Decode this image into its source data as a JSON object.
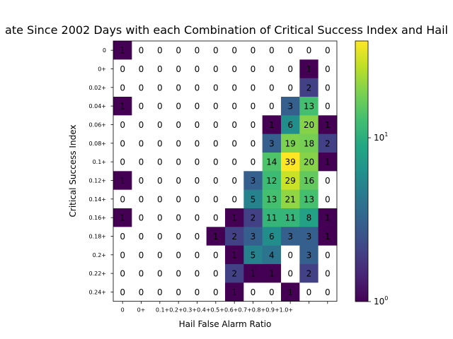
{
  "chart_data": {
    "type": "heatmap",
    "title": "ate Since 2002 Days with each Combination of Critical Success Index and Hail",
    "xlabel": "Hail False Alarm Ratio",
    "ylabel": "Critical Success Index",
    "x_tick_labels": [
      "0",
      "0+",
      "0.1+",
      "0.2+",
      "0.3+",
      "0.4+",
      "0.5+",
      "0.6+",
      "0.7+",
      "0.8+",
      "0.9+",
      "1.0+"
    ],
    "x_tick_text": [
      "0",
      "0+",
      "0.1+0.2+0.3+0.4+0.5+0.6+0.7+0.8+0.9+1.0+"
    ],
    "y_tick_labels": [
      "0",
      "0+",
      "0.02+",
      "0.04+",
      "0.06+",
      "0.08+",
      "0.1+",
      "0.12+",
      "0.14+",
      "0.16+",
      "0.18+",
      "0.2+",
      "0.22+",
      "0.24+"
    ],
    "values": [
      [
        1,
        0,
        0,
        0,
        0,
        0,
        0,
        0,
        0,
        0,
        0,
        0
      ],
      [
        0,
        0,
        0,
        0,
        0,
        0,
        0,
        0,
        0,
        0,
        1,
        0
      ],
      [
        0,
        0,
        0,
        0,
        0,
        0,
        0,
        0,
        0,
        0,
        2,
        0
      ],
      [
        1,
        0,
        0,
        0,
        0,
        0,
        0,
        0,
        0,
        3,
        13,
        0
      ],
      [
        0,
        0,
        0,
        0,
        0,
        0,
        0,
        0,
        1,
        6,
        20,
        1
      ],
      [
        0,
        0,
        0,
        0,
        0,
        0,
        0,
        0,
        3,
        19,
        18,
        2
      ],
      [
        0,
        0,
        0,
        0,
        0,
        0,
        0,
        0,
        14,
        39,
        20,
        1
      ],
      [
        1,
        0,
        0,
        0,
        0,
        0,
        0,
        3,
        12,
        29,
        16,
        0
      ],
      [
        0,
        0,
        0,
        0,
        0,
        0,
        0,
        5,
        13,
        21,
        13,
        0
      ],
      [
        1,
        0,
        0,
        0,
        0,
        0,
        1,
        2,
        11,
        11,
        8,
        1
      ],
      [
        0,
        0,
        0,
        0,
        0,
        1,
        2,
        3,
        6,
        3,
        3,
        1
      ],
      [
        0,
        0,
        0,
        0,
        0,
        0,
        1,
        5,
        4,
        0,
        3,
        0
      ],
      [
        0,
        0,
        0,
        0,
        0,
        0,
        2,
        1,
        1,
        0,
        2,
        0
      ],
      [
        0,
        0,
        0,
        0,
        0,
        0,
        1,
        0,
        0,
        1,
        0,
        0
      ]
    ],
    "color_scale": "log",
    "colormap": "viridis",
    "color_range": [
      1,
      39
    ],
    "colorbar_ticks": [
      {
        "value": 1,
        "base": "10",
        "exp": "0"
      },
      {
        "value": 10,
        "base": "10",
        "exp": "1"
      }
    ],
    "zero_cell_color": "#ffffff",
    "grid": false
  }
}
